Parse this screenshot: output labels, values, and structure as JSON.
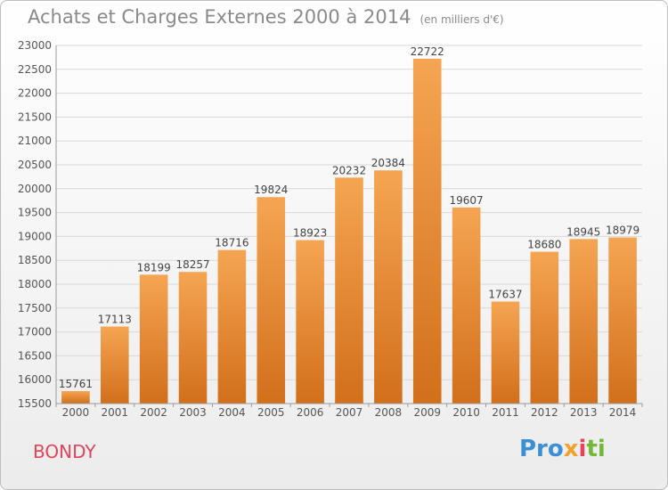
{
  "header": {
    "title": "Achats et Charges Externes 2000 à 2014",
    "subtitle": "(en milliers d'€)"
  },
  "footer": {
    "city": "BONDY"
  },
  "logo": {
    "parts": [
      "Pro",
      "x",
      "i",
      "ti"
    ]
  },
  "colors": {
    "bar_top": "#f5a552",
    "bar_bottom": "#d26f1b",
    "city": "#e2445c",
    "grid": "#d8d8d8",
    "text": "#555555"
  },
  "chart_data": {
    "type": "bar",
    "title": "Achats et Charges Externes 2000 à 2014",
    "subtitle": "(en milliers d'€)",
    "xlabel": "",
    "ylabel": "",
    "categories": [
      "2000",
      "2001",
      "2002",
      "2003",
      "2004",
      "2005",
      "2006",
      "2007",
      "2008",
      "2009",
      "2010",
      "2011",
      "2012",
      "2013",
      "2014"
    ],
    "values": [
      15761,
      17113,
      18199,
      18257,
      18716,
      19824,
      18923,
      20232,
      20384,
      22722,
      19607,
      17637,
      18680,
      18945,
      18979
    ],
    "ylim": [
      15500,
      23000
    ],
    "yticks": [
      15500,
      16000,
      16500,
      17000,
      17500,
      18000,
      18500,
      19000,
      19500,
      20000,
      20500,
      21000,
      21500,
      22000,
      22500,
      23000
    ],
    "grid": true,
    "legend": "none"
  }
}
